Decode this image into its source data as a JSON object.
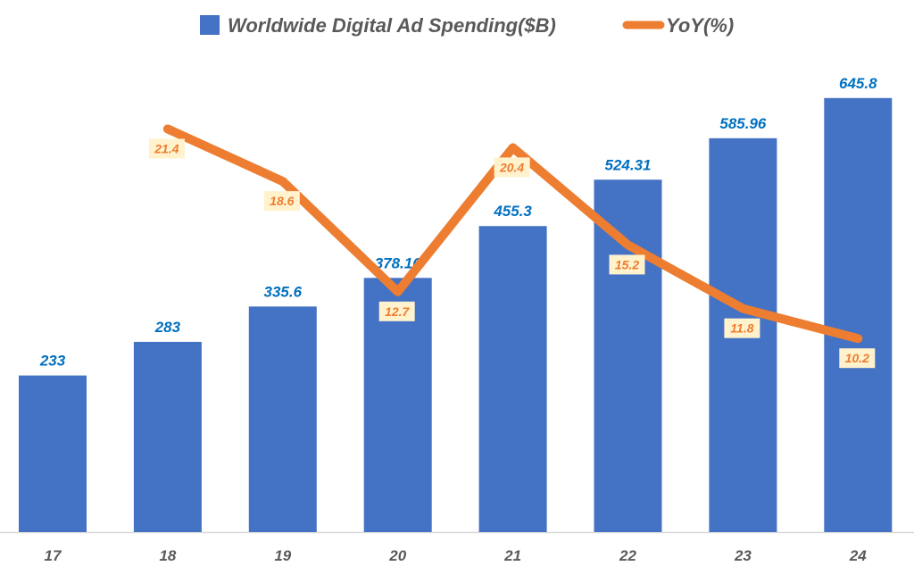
{
  "chart_data": {
    "type": "bar+line",
    "title": "",
    "categories": [
      "17",
      "18",
      "19",
      "20",
      "21",
      "22",
      "23",
      "24"
    ],
    "series": [
      {
        "name": "Worldwide Digital Ad Spending($B)",
        "type": "bar",
        "axis": "primary",
        "color": "#4472C4",
        "values": [
          233,
          283,
          335.6,
          378.16,
          455.3,
          524.31,
          585.96,
          645.8
        ],
        "labels": [
          "233",
          "283",
          "335.6",
          "378.16",
          "455.3",
          "524.31",
          "585.96",
          "645.8"
        ]
      },
      {
        "name": "YoY(%)",
        "type": "line",
        "axis": "secondary",
        "color": "#ED7D31",
        "values": [
          null,
          21.4,
          18.6,
          12.7,
          20.4,
          15.2,
          11.8,
          10.2
        ],
        "labels": [
          "",
          "21.4",
          "18.6",
          "12.7",
          "20.4",
          "15.2",
          "11.8",
          "10.2"
        ]
      }
    ],
    "ylim": [
      0,
      700
    ],
    "y2lim": [
      0,
      25
    ],
    "grid": false,
    "legend": "top",
    "colors": {
      "bar_label": "#0070C0",
      "line_label_bg": "#FFF2CC",
      "axis_text": "#595959"
    }
  }
}
